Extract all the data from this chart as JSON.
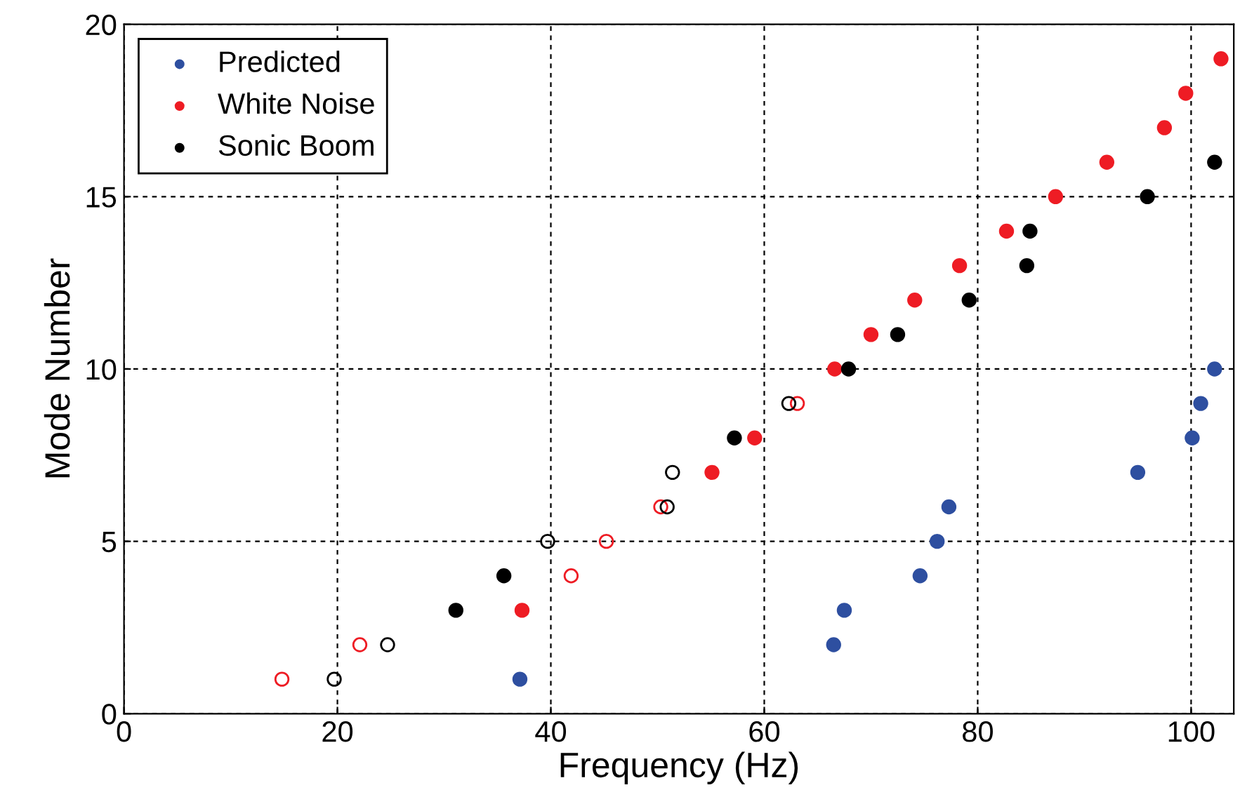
{
  "chart_data": {
    "type": "scatter",
    "xlabel": "Frequency (Hz)",
    "ylabel": "Mode Number",
    "xlim": [
      0,
      104
    ],
    "ylim": [
      0,
      20
    ],
    "xticks": [
      0,
      20,
      40,
      60,
      80,
      100
    ],
    "yticks": [
      0,
      5,
      10,
      15,
      20
    ],
    "grid": true,
    "legend": "top left",
    "marker": "circle",
    "series": [
      {
        "name": "Predicted",
        "color": "#2e4fa0",
        "x": [
          37.1,
          66.5,
          67.5,
          74.6,
          76.2,
          77.3,
          95.0,
          100.1,
          100.9,
          102.2
        ],
        "values": [
          1,
          2,
          3,
          4,
          5,
          6,
          7,
          8,
          9,
          10
        ]
      },
      {
        "name": "White Noise",
        "color": "#ee1c24",
        "x": [
          37.3,
          55.1,
          59.1,
          66.6,
          70.0,
          74.1,
          78.3,
          82.7,
          87.3,
          92.1,
          97.5,
          99.5,
          102.8
        ],
        "values": [
          3,
          7,
          8,
          10,
          11,
          12,
          13,
          14,
          15,
          16,
          17,
          18,
          19
        ]
      },
      {
        "name": "Sonic Boom",
        "color": "#000000",
        "x": [
          31.1,
          35.6,
          57.2,
          67.9,
          72.5,
          79.2,
          84.6,
          84.9,
          95.9,
          102.2
        ],
        "values": [
          3,
          4,
          8,
          10,
          11,
          12,
          13,
          14,
          15,
          16
        ]
      },
      {
        "color": "#ee1c24",
        "x": [
          14.8,
          22.1,
          41.9,
          45.2,
          50.3,
          63.1
        ],
        "values": [
          1,
          2,
          4,
          5,
          6,
          9
        ]
      },
      {
        "color": "#000000",
        "x": [
          19.7,
          24.7,
          39.7,
          50.9,
          51.4,
          62.3
        ],
        "values": [
          1,
          2,
          5,
          6,
          7,
          9
        ]
      }
    ]
  }
}
